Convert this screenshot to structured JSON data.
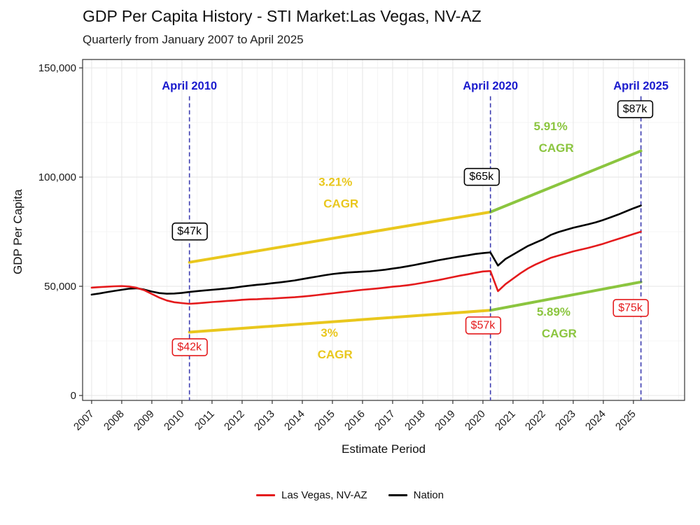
{
  "chart_data": {
    "type": "line",
    "title": "GDP Per Capita History - STI Market:Las Vegas, NV-AZ",
    "subtitle": "Quarterly from January 2007 to April 2025",
    "xlabel": "Estimate Period",
    "ylabel": "GDP Per Capita",
    "xlim": [
      2006.7,
      2026.7
    ],
    "ylim": [
      0,
      150000
    ],
    "grid": true,
    "legend_position": "bottom",
    "x_ticks": [
      2007,
      2008,
      2009,
      2010,
      2011,
      2012,
      2013,
      2014,
      2015,
      2016,
      2017,
      2018,
      2019,
      2020,
      2021,
      2022,
      2023,
      2024,
      2025
    ],
    "y_ticks": [
      {
        "value": 0,
        "label": "0"
      },
      {
        "value": 50000,
        "label": "50,000"
      },
      {
        "value": 100000,
        "label": "100,000"
      },
      {
        "value": 150000,
        "label": "150,000"
      }
    ],
    "colors": {
      "las_vegas": "#e41a1c",
      "nation": "#000000",
      "gold": "#e9c71d",
      "green": "#8bc53f",
      "blue_text": "#1a1acd",
      "blue_line": "#3b3bb0"
    },
    "series": [
      {
        "name": "Las Vegas, NV-AZ",
        "color_key": "las_vegas",
        "points": [
          [
            2007.0,
            49400
          ],
          [
            2007.25,
            49600
          ],
          [
            2007.5,
            49800
          ],
          [
            2007.75,
            50000
          ],
          [
            2008.0,
            50100
          ],
          [
            2008.25,
            49900
          ],
          [
            2008.5,
            49300
          ],
          [
            2008.75,
            48200
          ],
          [
            2009.0,
            46500
          ],
          [
            2009.25,
            44800
          ],
          [
            2009.5,
            43500
          ],
          [
            2009.75,
            42700
          ],
          [
            2010.0,
            42300
          ],
          [
            2010.25,
            42000
          ],
          [
            2010.5,
            42200
          ],
          [
            2010.75,
            42500
          ],
          [
            2011.0,
            42800
          ],
          [
            2011.25,
            43000
          ],
          [
            2011.5,
            43300
          ],
          [
            2011.75,
            43500
          ],
          [
            2012.0,
            43800
          ],
          [
            2012.25,
            44000
          ],
          [
            2012.5,
            44100
          ],
          [
            2012.75,
            44300
          ],
          [
            2013.0,
            44400
          ],
          [
            2013.25,
            44600
          ],
          [
            2013.5,
            44800
          ],
          [
            2013.75,
            45000
          ],
          [
            2014.0,
            45300
          ],
          [
            2014.25,
            45600
          ],
          [
            2014.5,
            46000
          ],
          [
            2014.75,
            46400
          ],
          [
            2015.0,
            46800
          ],
          [
            2015.25,
            47200
          ],
          [
            2015.5,
            47600
          ],
          [
            2015.75,
            48000
          ],
          [
            2016.0,
            48400
          ],
          [
            2016.25,
            48700
          ],
          [
            2016.5,
            49000
          ],
          [
            2016.75,
            49400
          ],
          [
            2017.0,
            49800
          ],
          [
            2017.25,
            50100
          ],
          [
            2017.5,
            50500
          ],
          [
            2017.75,
            51000
          ],
          [
            2018.0,
            51600
          ],
          [
            2018.25,
            52200
          ],
          [
            2018.5,
            52800
          ],
          [
            2018.75,
            53500
          ],
          [
            2019.0,
            54200
          ],
          [
            2019.25,
            54900
          ],
          [
            2019.5,
            55500
          ],
          [
            2019.75,
            56200
          ],
          [
            2020.0,
            56800
          ],
          [
            2020.25,
            57000
          ],
          [
            2020.5,
            47800
          ],
          [
            2020.75,
            51000
          ],
          [
            2021.0,
            53500
          ],
          [
            2021.25,
            56000
          ],
          [
            2021.5,
            58200
          ],
          [
            2021.75,
            60000
          ],
          [
            2022.0,
            61500
          ],
          [
            2022.25,
            63000
          ],
          [
            2022.5,
            64000
          ],
          [
            2022.75,
            65000
          ],
          [
            2023.0,
            66000
          ],
          [
            2023.25,
            66800
          ],
          [
            2023.5,
            67600
          ],
          [
            2023.75,
            68500
          ],
          [
            2024.0,
            69500
          ],
          [
            2024.25,
            70600
          ],
          [
            2024.5,
            71700
          ],
          [
            2024.75,
            72800
          ],
          [
            2025.0,
            73900
          ],
          [
            2025.25,
            75000
          ]
        ]
      },
      {
        "name": "Nation",
        "color_key": "nation",
        "points": [
          [
            2007.0,
            46200
          ],
          [
            2007.25,
            46700
          ],
          [
            2007.5,
            47300
          ],
          [
            2007.75,
            47900
          ],
          [
            2008.0,
            48400
          ],
          [
            2008.25,
            48900
          ],
          [
            2008.5,
            49100
          ],
          [
            2008.75,
            48500
          ],
          [
            2009.0,
            47600
          ],
          [
            2009.25,
            46900
          ],
          [
            2009.5,
            46600
          ],
          [
            2009.75,
            46700
          ],
          [
            2010.0,
            47000
          ],
          [
            2010.25,
            47400
          ],
          [
            2010.5,
            47800
          ],
          [
            2010.75,
            48100
          ],
          [
            2011.0,
            48400
          ],
          [
            2011.25,
            48700
          ],
          [
            2011.5,
            49000
          ],
          [
            2011.75,
            49400
          ],
          [
            2012.0,
            49900
          ],
          [
            2012.25,
            50300
          ],
          [
            2012.5,
            50700
          ],
          [
            2012.75,
            51000
          ],
          [
            2013.0,
            51400
          ],
          [
            2013.25,
            51800
          ],
          [
            2013.5,
            52200
          ],
          [
            2013.75,
            52700
          ],
          [
            2014.0,
            53300
          ],
          [
            2014.25,
            53900
          ],
          [
            2014.5,
            54500
          ],
          [
            2014.75,
            55100
          ],
          [
            2015.0,
            55600
          ],
          [
            2015.25,
            56000
          ],
          [
            2015.5,
            56300
          ],
          [
            2015.75,
            56500
          ],
          [
            2016.0,
            56700
          ],
          [
            2016.25,
            56900
          ],
          [
            2016.5,
            57200
          ],
          [
            2016.75,
            57600
          ],
          [
            2017.0,
            58100
          ],
          [
            2017.25,
            58600
          ],
          [
            2017.5,
            59200
          ],
          [
            2017.75,
            59800
          ],
          [
            2018.0,
            60500
          ],
          [
            2018.25,
            61200
          ],
          [
            2018.5,
            61900
          ],
          [
            2018.75,
            62500
          ],
          [
            2019.0,
            63100
          ],
          [
            2019.25,
            63700
          ],
          [
            2019.5,
            64200
          ],
          [
            2019.75,
            64800
          ],
          [
            2020.0,
            65200
          ],
          [
            2020.25,
            65500
          ],
          [
            2020.5,
            59500
          ],
          [
            2020.75,
            62500
          ],
          [
            2021.0,
            64500
          ],
          [
            2021.25,
            66500
          ],
          [
            2021.5,
            68500
          ],
          [
            2021.75,
            70000
          ],
          [
            2022.0,
            71500
          ],
          [
            2022.25,
            73500
          ],
          [
            2022.5,
            74800
          ],
          [
            2022.75,
            75800
          ],
          [
            2023.0,
            76800
          ],
          [
            2023.25,
            77600
          ],
          [
            2023.5,
            78400
          ],
          [
            2023.75,
            79300
          ],
          [
            2024.0,
            80400
          ],
          [
            2024.25,
            81600
          ],
          [
            2024.5,
            82900
          ],
          [
            2024.75,
            84300
          ],
          [
            2025.0,
            85700
          ],
          [
            2025.25,
            87000
          ]
        ]
      }
    ],
    "trend_lines": [
      {
        "label": "3.21% CAGR",
        "color_key": "gold",
        "points": [
          [
            2010.25,
            61000
          ],
          [
            2020.25,
            84000
          ]
        ]
      },
      {
        "label": "3% CAGR",
        "color_key": "gold",
        "points": [
          [
            2010.25,
            29000
          ],
          [
            2020.25,
            39000
          ]
        ]
      },
      {
        "label": "5.91% CAGR",
        "color_key": "green",
        "points": [
          [
            2020.25,
            84000
          ],
          [
            2025.25,
            112000
          ]
        ]
      },
      {
        "label": "5.89% CAGR",
        "color_key": "green",
        "points": [
          [
            2020.25,
            39000
          ],
          [
            2025.25,
            52000
          ]
        ]
      }
    ],
    "annotations": {
      "vlines": [
        {
          "x": 2010.25,
          "label": "April 2010"
        },
        {
          "x": 2020.25,
          "label": "April 2020"
        },
        {
          "x": 2025.25,
          "label": "April 2025"
        }
      ],
      "value_boxes": [
        {
          "x": 2010.25,
          "y": 75000,
          "text": "$47k",
          "color_key": "nation"
        },
        {
          "x": 2010.25,
          "y": 22000,
          "text": "$42k",
          "color_key": "las_vegas"
        },
        {
          "x": 2019.95,
          "y": 100000,
          "text": "$65k",
          "color_key": "nation"
        },
        {
          "x": 2020.0,
          "y": 32000,
          "text": "$57k",
          "color_key": "las_vegas"
        },
        {
          "x": 2025.05,
          "y": 131000,
          "text": "$87k",
          "color_key": "nation"
        },
        {
          "x": 2024.9,
          "y": 40000,
          "text": "$75k",
          "color_key": "las_vegas"
        }
      ],
      "cagr_labels": [
        {
          "x": 2015.1,
          "y": 96000,
          "lines": [
            "3.21%",
            "CAGR"
          ],
          "color_key": "gold"
        },
        {
          "x": 2014.9,
          "y": 27000,
          "lines": [
            "3%",
            "CAGR"
          ],
          "color_key": "gold"
        },
        {
          "x": 2022.25,
          "y": 121500,
          "lines": [
            "5.91%",
            "CAGR"
          ],
          "color_key": "green"
        },
        {
          "x": 2022.35,
          "y": 36500,
          "lines": [
            "5.89%",
            "CAGR"
          ],
          "color_key": "green"
        }
      ]
    }
  }
}
